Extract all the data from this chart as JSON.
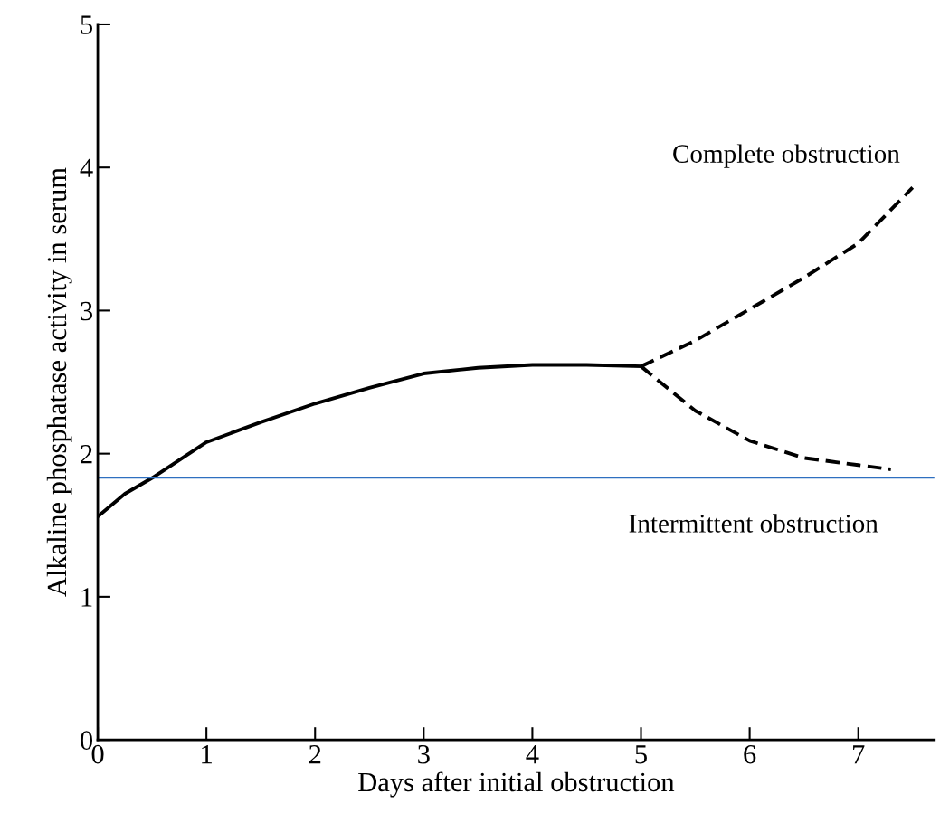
{
  "chart_data": {
    "type": "line",
    "xlabel": "Days after initial obstruction",
    "ylabel": "Alkaline phosphatase activity in serum",
    "xlim": [
      0,
      7.7
    ],
    "ylim": [
      0,
      5
    ],
    "xticks": [
      0,
      1,
      2,
      3,
      4,
      5,
      6,
      7
    ],
    "yticks": [
      0,
      1,
      2,
      3,
      4,
      5
    ],
    "grid": false,
    "legend": false,
    "marker": "none",
    "series": [
      {
        "color": "#000000",
        "line_style": "solid",
        "x": [
          0,
          0.25,
          0.5,
          1,
          1.5,
          2,
          2.5,
          3,
          3.5,
          4,
          4.5,
          5
        ],
        "values": [
          1.56,
          1.72,
          1.83,
          2.08,
          2.22,
          2.35,
          2.46,
          2.56,
          2.6,
          2.62,
          2.62,
          2.61
        ]
      },
      {
        "name": "Complete obstruction",
        "color": "#000000",
        "line_style": "dashed",
        "x": [
          5,
          5.5,
          6,
          6.5,
          7,
          7.5
        ],
        "values": [
          2.61,
          2.79,
          3.01,
          3.23,
          3.47,
          3.86
        ]
      },
      {
        "name": "Intermittent obstruction",
        "color": "#000000",
        "line_style": "dashed",
        "x": [
          5,
          5.5,
          6,
          6.5,
          7,
          7.3
        ],
        "values": [
          2.61,
          2.3,
          2.09,
          1.97,
          1.92,
          1.89
        ]
      }
    ],
    "ref_lines": [
      {
        "axis": "y",
        "value": 1.83,
        "color": "#2e6fc0",
        "line_style": "solid"
      }
    ]
  }
}
